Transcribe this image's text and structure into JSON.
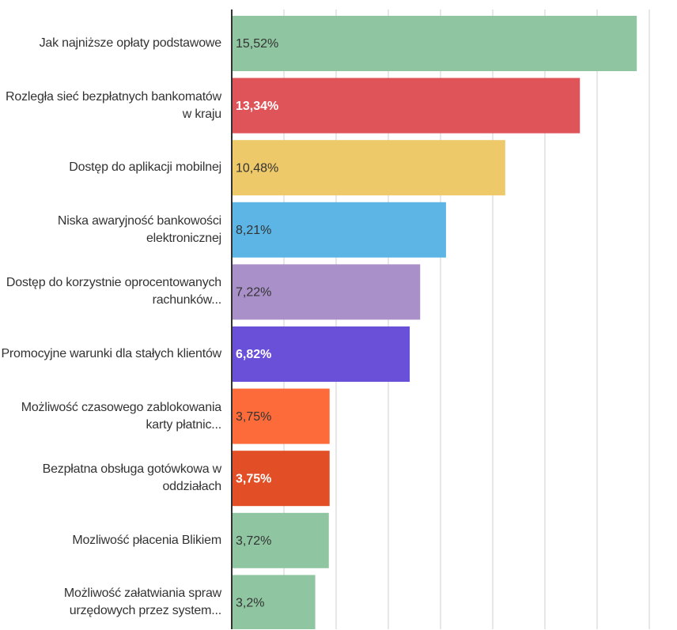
{
  "chart_data": {
    "type": "bar",
    "orientation": "horizontal",
    "categories": [
      "Jak najniższe opłaty podstawowe",
      "Rozległa sieć bezpłatnych bankomatów w kraju",
      "Dostęp do aplikacji mobilnej",
      "Niska awaryjność bankowości elektronicznej",
      "Dostęp do korzystnie oprocentowanych rachunków...",
      "Promocyjne warunki dla stałych klientów",
      "Możliwość czasowego zablokowania karty płatnic...",
      "Bezpłatna obsługa gotówkowa w oddziałach",
      "Mozliwość płacenia Blikiem",
      "Możliwość załatwiania spraw urzędowych przez system..."
    ],
    "values": [
      15.52,
      13.34,
      10.48,
      8.21,
      7.22,
      6.82,
      3.75,
      3.75,
      3.72,
      3.2
    ],
    "value_labels": [
      "15,52%",
      "13,34%",
      "10,48%",
      "8,21%",
      "7,22%",
      "6,82%",
      "3,75%",
      "3,75%",
      "3,72%",
      "3,2%"
    ],
    "colors": [
      "#8fc6a1",
      "#df5459",
      "#eec96a",
      "#5db5e6",
      "#a990c9",
      "#6a4fd8",
      "#fd6b3a",
      "#e24f27",
      "#8fc6a1",
      "#8fc6a1"
    ],
    "label_colors": [
      "#333333",
      "#ffffff",
      "#333333",
      "#333333",
      "#333333",
      "#ffffff",
      "#333333",
      "#ffffff",
      "#333333",
      "#333333"
    ],
    "xlim": [
      0,
      16
    ],
    "xticks": [
      0,
      2,
      4,
      6,
      8,
      10,
      12,
      14,
      16
    ],
    "grid": true
  }
}
